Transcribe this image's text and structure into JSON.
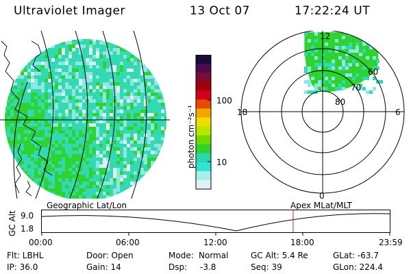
{
  "header": {
    "instrument": "Ultraviolet Imager",
    "date": "13 Oct 07",
    "time": "17:22:24 UT"
  },
  "colorbar": {
    "unit_label": "photon cm⁻²s⁻¹",
    "ticks": [
      "100",
      "10"
    ],
    "colors": [
      "#1a0a3a",
      "#4a0c4f",
      "#7a0c3a",
      "#a3000e",
      "#d3001c",
      "#e84a00",
      "#f6a400",
      "#eede00",
      "#b8e400",
      "#6edb00",
      "#2fd32f",
      "#29d7ad",
      "#30e3d3",
      "#a9ecec",
      "#dff3f3"
    ]
  },
  "geo_map": {
    "label": "Geographic Lat/Lon",
    "colors": [
      "#2fd32f",
      "#32d9b3",
      "#8fe7e3",
      "#dff2f2"
    ]
  },
  "polar_plot": {
    "label": "Apex MLat/MLT",
    "mlt_labels": [
      "12",
      "18",
      "6",
      "0"
    ],
    "lat_labels": [
      "60",
      "70",
      "80"
    ]
  },
  "altitude_plot": {
    "ylabel": "GC Alt",
    "yticks": [
      "9.0",
      "1.8"
    ],
    "xticks": [
      "00:00",
      "06:00",
      "12:00",
      "18:00",
      "23:59"
    ],
    "current_time_color": "#cc2222"
  },
  "footer": {
    "col1": [
      "Flt: LBHL",
      "IP: 36.0"
    ],
    "col2": [
      "Door: Open",
      "Gain: 14"
    ],
    "col3a": [
      "Mode:",
      "Dsp:"
    ],
    "col3b": [
      "Normal",
      "-3.8"
    ],
    "col4": [
      "GC Alt: 5.4 Re",
      "Seq: 39"
    ],
    "col5": [
      "GLat: -63.7",
      "GLon: 224.4"
    ]
  }
}
